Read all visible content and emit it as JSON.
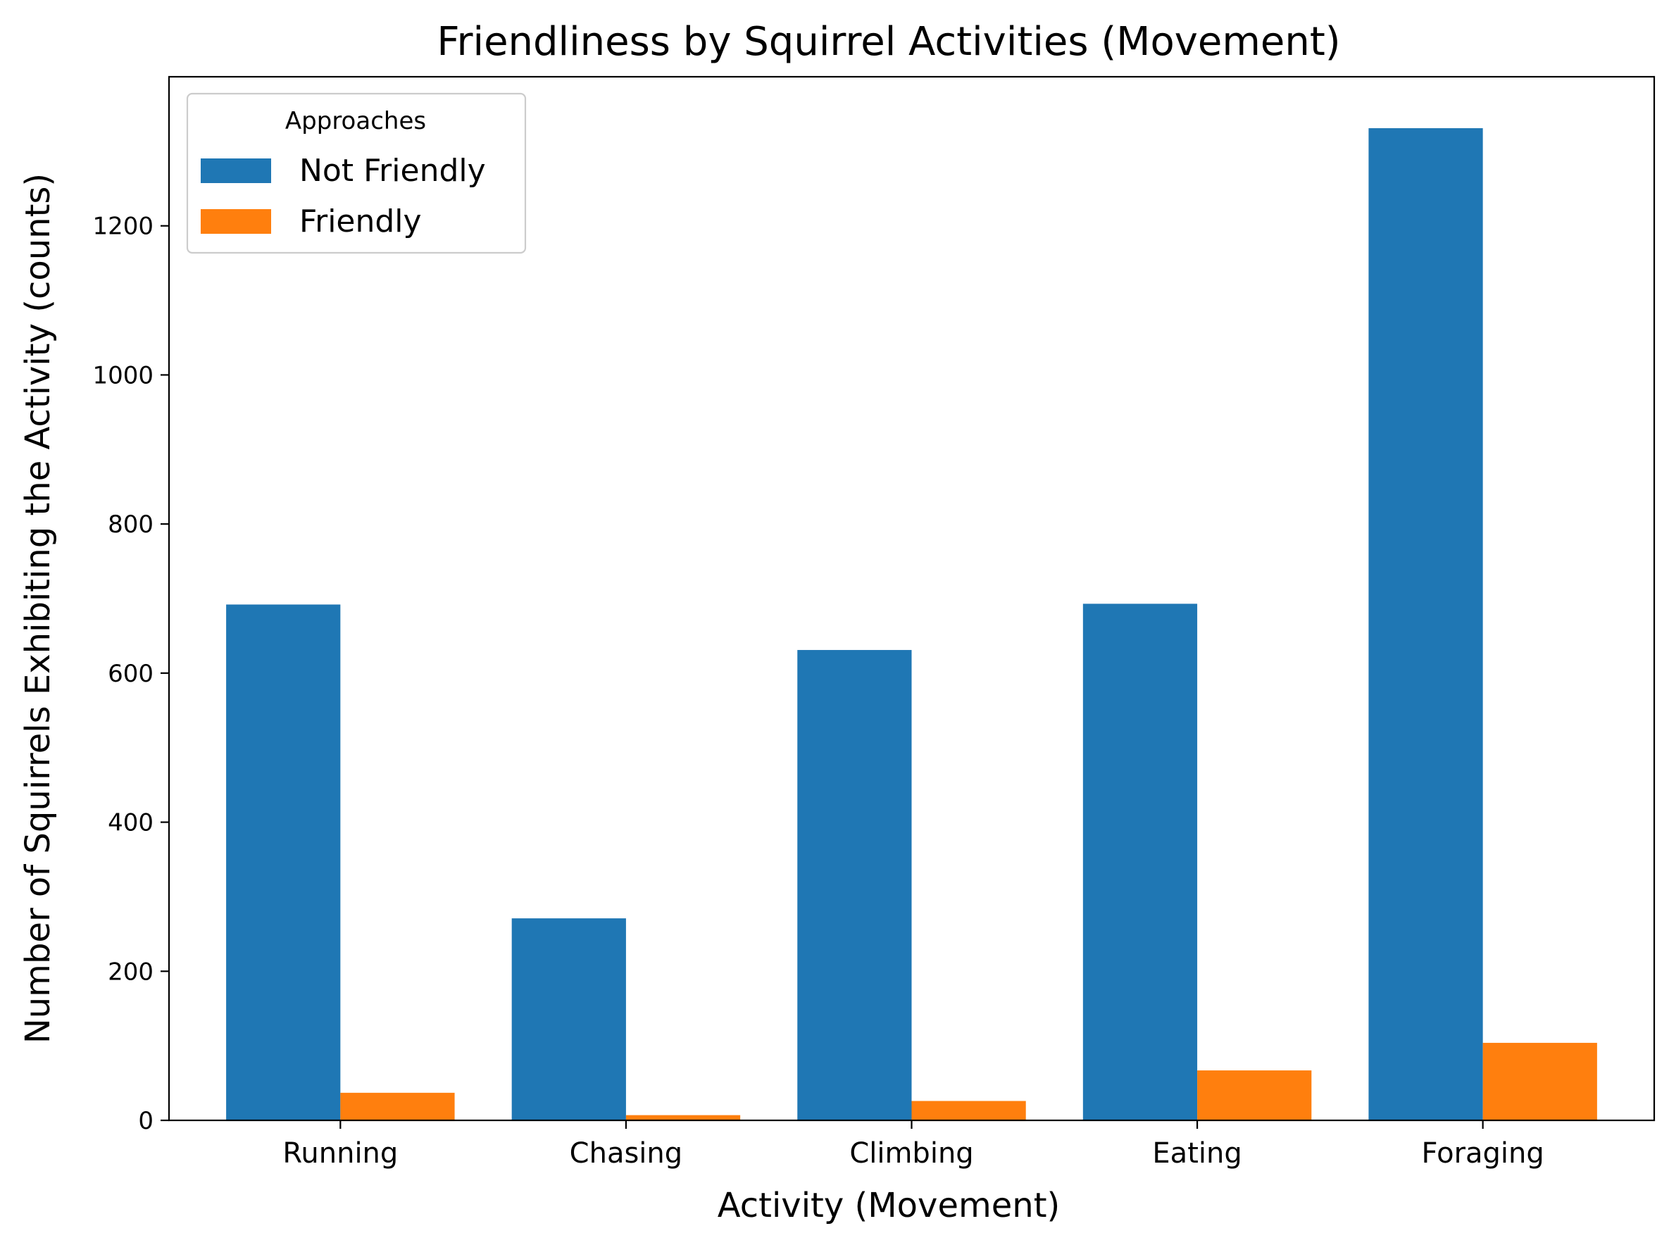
{
  "chart_data": {
    "type": "bar",
    "title": "Friendliness by Squirrel Activities (Movement)",
    "xlabel": "Activity (Movement)",
    "ylabel": "Number of Squirrels Exhibiting the Activity (counts)",
    "categories": [
      "Running",
      "Chasing",
      "Climbing",
      "Eating",
      "Foraging"
    ],
    "series": [
      {
        "name": "Not Friendly",
        "color": "#1f77b4",
        "values": [
          692,
          271,
          631,
          693,
          1331
        ]
      },
      {
        "name": "Friendly",
        "color": "#ff7f0e",
        "values": [
          37,
          7,
          26,
          67,
          104
        ]
      }
    ],
    "ylim": [
      0,
      1400
    ],
    "yticks": [
      0,
      200,
      400,
      600,
      800,
      1000,
      1200
    ],
    "grid": false,
    "legend": {
      "title": "Approaches",
      "position": "top-left"
    }
  }
}
